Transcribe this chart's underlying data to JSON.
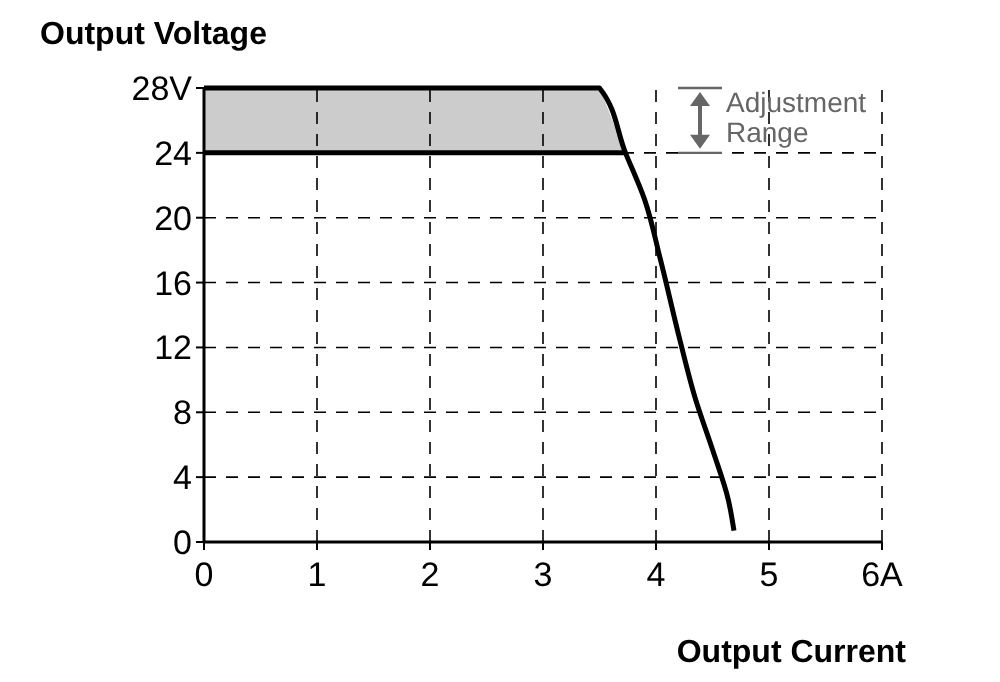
{
  "chart_data": {
    "type": "line",
    "xlabel": "Output Current",
    "ylabel": "Output Voltage",
    "xlim": [
      0,
      6
    ],
    "xticks": [
      0,
      1,
      2,
      3,
      4,
      5,
      {
        "value": 6,
        "label": "6A"
      }
    ],
    "ylim": [
      0,
      28
    ],
    "yticks": [
      0,
      4,
      8,
      12,
      16,
      20,
      24,
      {
        "value": 28,
        "label": "28V"
      }
    ],
    "grid": true,
    "series": [
      {
        "color": "#000000",
        "x": [
          0,
          3.5,
          3.73,
          3.9,
          4.04,
          4.21,
          4.35,
          4.5,
          4.64,
          4.69
        ],
        "values": [
          28,
          28,
          24,
          21.1,
          17.4,
          12.5,
          8.8,
          5.7,
          2.6,
          0.7
        ]
      },
      {
        "color": "#000000",
        "x": [
          0,
          3.73
        ],
        "values": [
          24,
          24
        ]
      }
    ],
    "bands": [
      {
        "axis": "y",
        "from": 24,
        "to": 28,
        "color": "#cccccc"
      }
    ],
    "annotations": [
      "Adjustment Range"
    ]
  }
}
